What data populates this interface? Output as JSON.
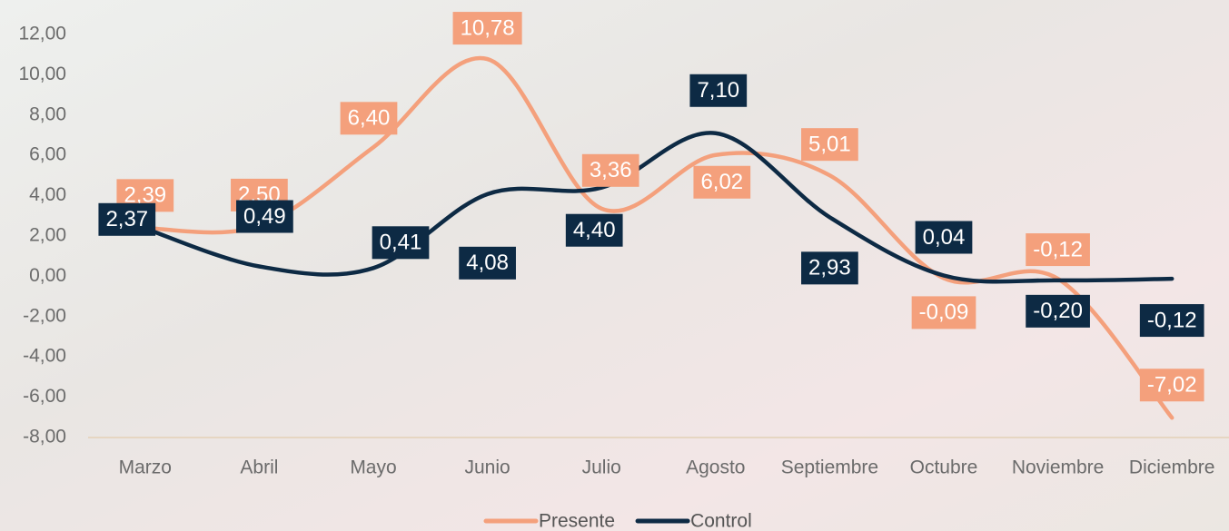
{
  "chart_data": {
    "type": "line",
    "categories": [
      "Marzo",
      "Abril",
      "Mayo",
      "Junio",
      "Julio",
      "Agosto",
      "Septiembre",
      "Octubre",
      "Noviembre",
      "Diciembre"
    ],
    "series": [
      {
        "name": "Presente",
        "color": "#f4a07c",
        "values": [
          2.39,
          2.5,
          6.4,
          10.78,
          3.36,
          6.02,
          5.01,
          -0.09,
          -0.12,
          -7.02
        ],
        "value_labels": [
          "2,39",
          "2,50",
          "6,40",
          "10,78",
          "3,36",
          "6,02",
          "5,01",
          "-0,09",
          "-0,12",
          "-7,02"
        ]
      },
      {
        "name": "Control",
        "color": "#0d2a44",
        "values": [
          2.37,
          0.49,
          0.41,
          4.08,
          4.4,
          7.1,
          2.93,
          0.04,
          -0.2,
          -0.12
        ],
        "value_labels": [
          "2,37",
          "0,49",
          "0,41",
          "4,08",
          "4,40",
          "7,10",
          "2,93",
          "0,04",
          "-0,20",
          "-0,12"
        ]
      }
    ],
    "ylim": [
      -8,
      12
    ],
    "yticks": [
      {
        "value": -8,
        "label": "-8,00"
      },
      {
        "value": -6,
        "label": "-6,00"
      },
      {
        "value": -4,
        "label": "-4,00"
      },
      {
        "value": -2,
        "label": "-2,00"
      },
      {
        "value": 0,
        "label": "0,00"
      },
      {
        "value": 2,
        "label": "2,00"
      },
      {
        "value": 4,
        "label": "4,00"
      },
      {
        "value": 6,
        "label": "6,00"
      },
      {
        "value": 8,
        "label": "8,00"
      },
      {
        "value": 10,
        "label": "10,00"
      },
      {
        "value": 12,
        "label": "12,00"
      }
    ],
    "legend": "bottom"
  }
}
